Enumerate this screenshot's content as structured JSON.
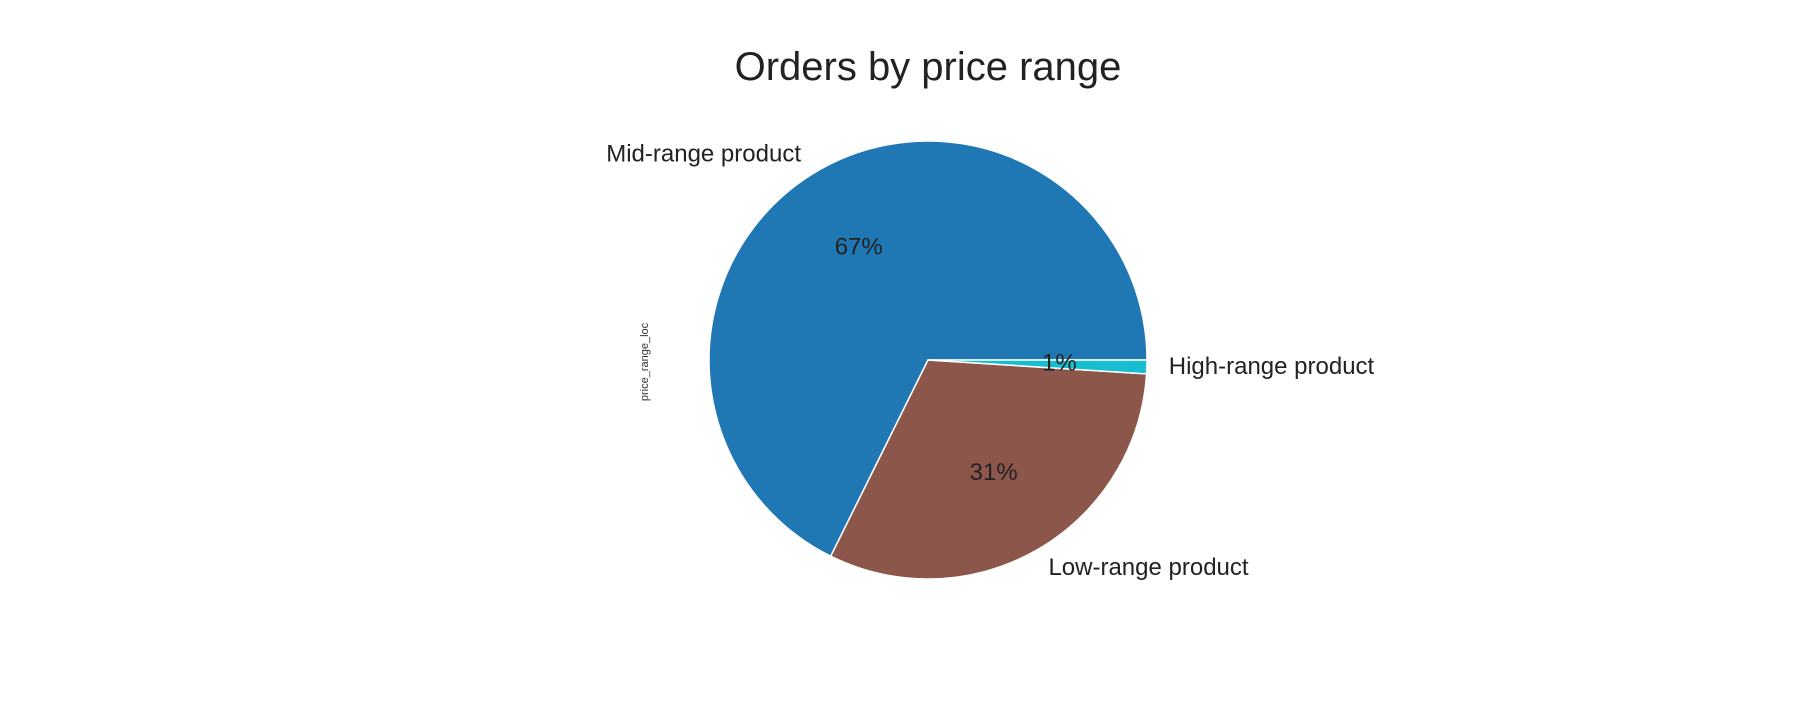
{
  "chart_data": {
    "type": "pie",
    "title": "Orders by price range",
    "ylabel": "price_range_loc",
    "categories": [
      "Mid-range product",
      "Low-range product",
      "High-range product"
    ],
    "values": [
      67,
      31,
      1
    ],
    "percent_labels": [
      "67%",
      "31%",
      "1%"
    ],
    "colors": [
      "#1f77b4",
      "#8c564b",
      "#17becf"
    ],
    "start_angle_deg": 0,
    "direction": "counterclockwise",
    "legend": "none",
    "grid": false
  }
}
